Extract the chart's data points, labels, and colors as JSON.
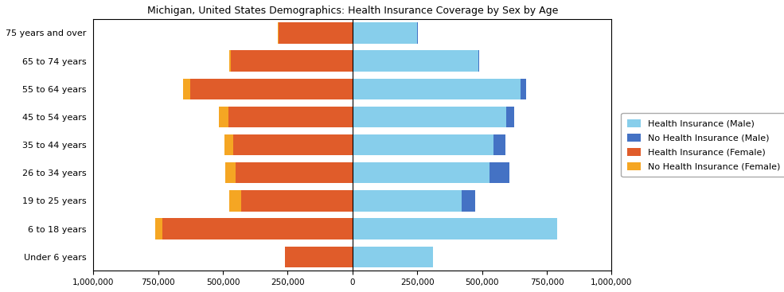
{
  "title": "Michigan, United States Demographics: Health Insurance Coverage by Sex by Age",
  "age_groups": [
    "Under 6 years",
    "6 to 18 years",
    "19 to 25 years",
    "26 to 34 years",
    "35 to 44 years",
    "45 to 54 years",
    "55 to 64 years",
    "65 to 74 years",
    "75 years and over"
  ],
  "health_ins_male": [
    310000,
    790000,
    420000,
    530000,
    545000,
    595000,
    650000,
    485000,
    250000
  ],
  "no_health_ins_male": [
    0,
    0,
    55000,
    75000,
    45000,
    30000,
    20000,
    5000,
    3000
  ],
  "health_ins_female": [
    260000,
    735000,
    430000,
    450000,
    460000,
    480000,
    625000,
    470000,
    285000
  ],
  "no_health_ins_female": [
    0,
    25000,
    45000,
    40000,
    35000,
    35000,
    30000,
    5000,
    3000
  ],
  "color_health_ins_male": "#87CEEB",
  "color_no_health_ins_male": "#4472C4",
  "color_health_ins_female": "#E05C2A",
  "color_no_health_ins_female": "#F5A623",
  "xlim": 1000000,
  "background_color": "#ffffff",
  "legend_labels": [
    "Health Insurance (Male)",
    "No Health Insurance (Male)",
    "Health Insurance (Female)",
    "No Health Insurance (Female)"
  ],
  "legend_colors": [
    "#87CEEB",
    "#4472C4",
    "#E05C2A",
    "#F5A623"
  ],
  "title_fontsize": 9,
  "tick_fontsize": 7.5,
  "ytick_fontsize": 8,
  "bar_height": 0.75
}
